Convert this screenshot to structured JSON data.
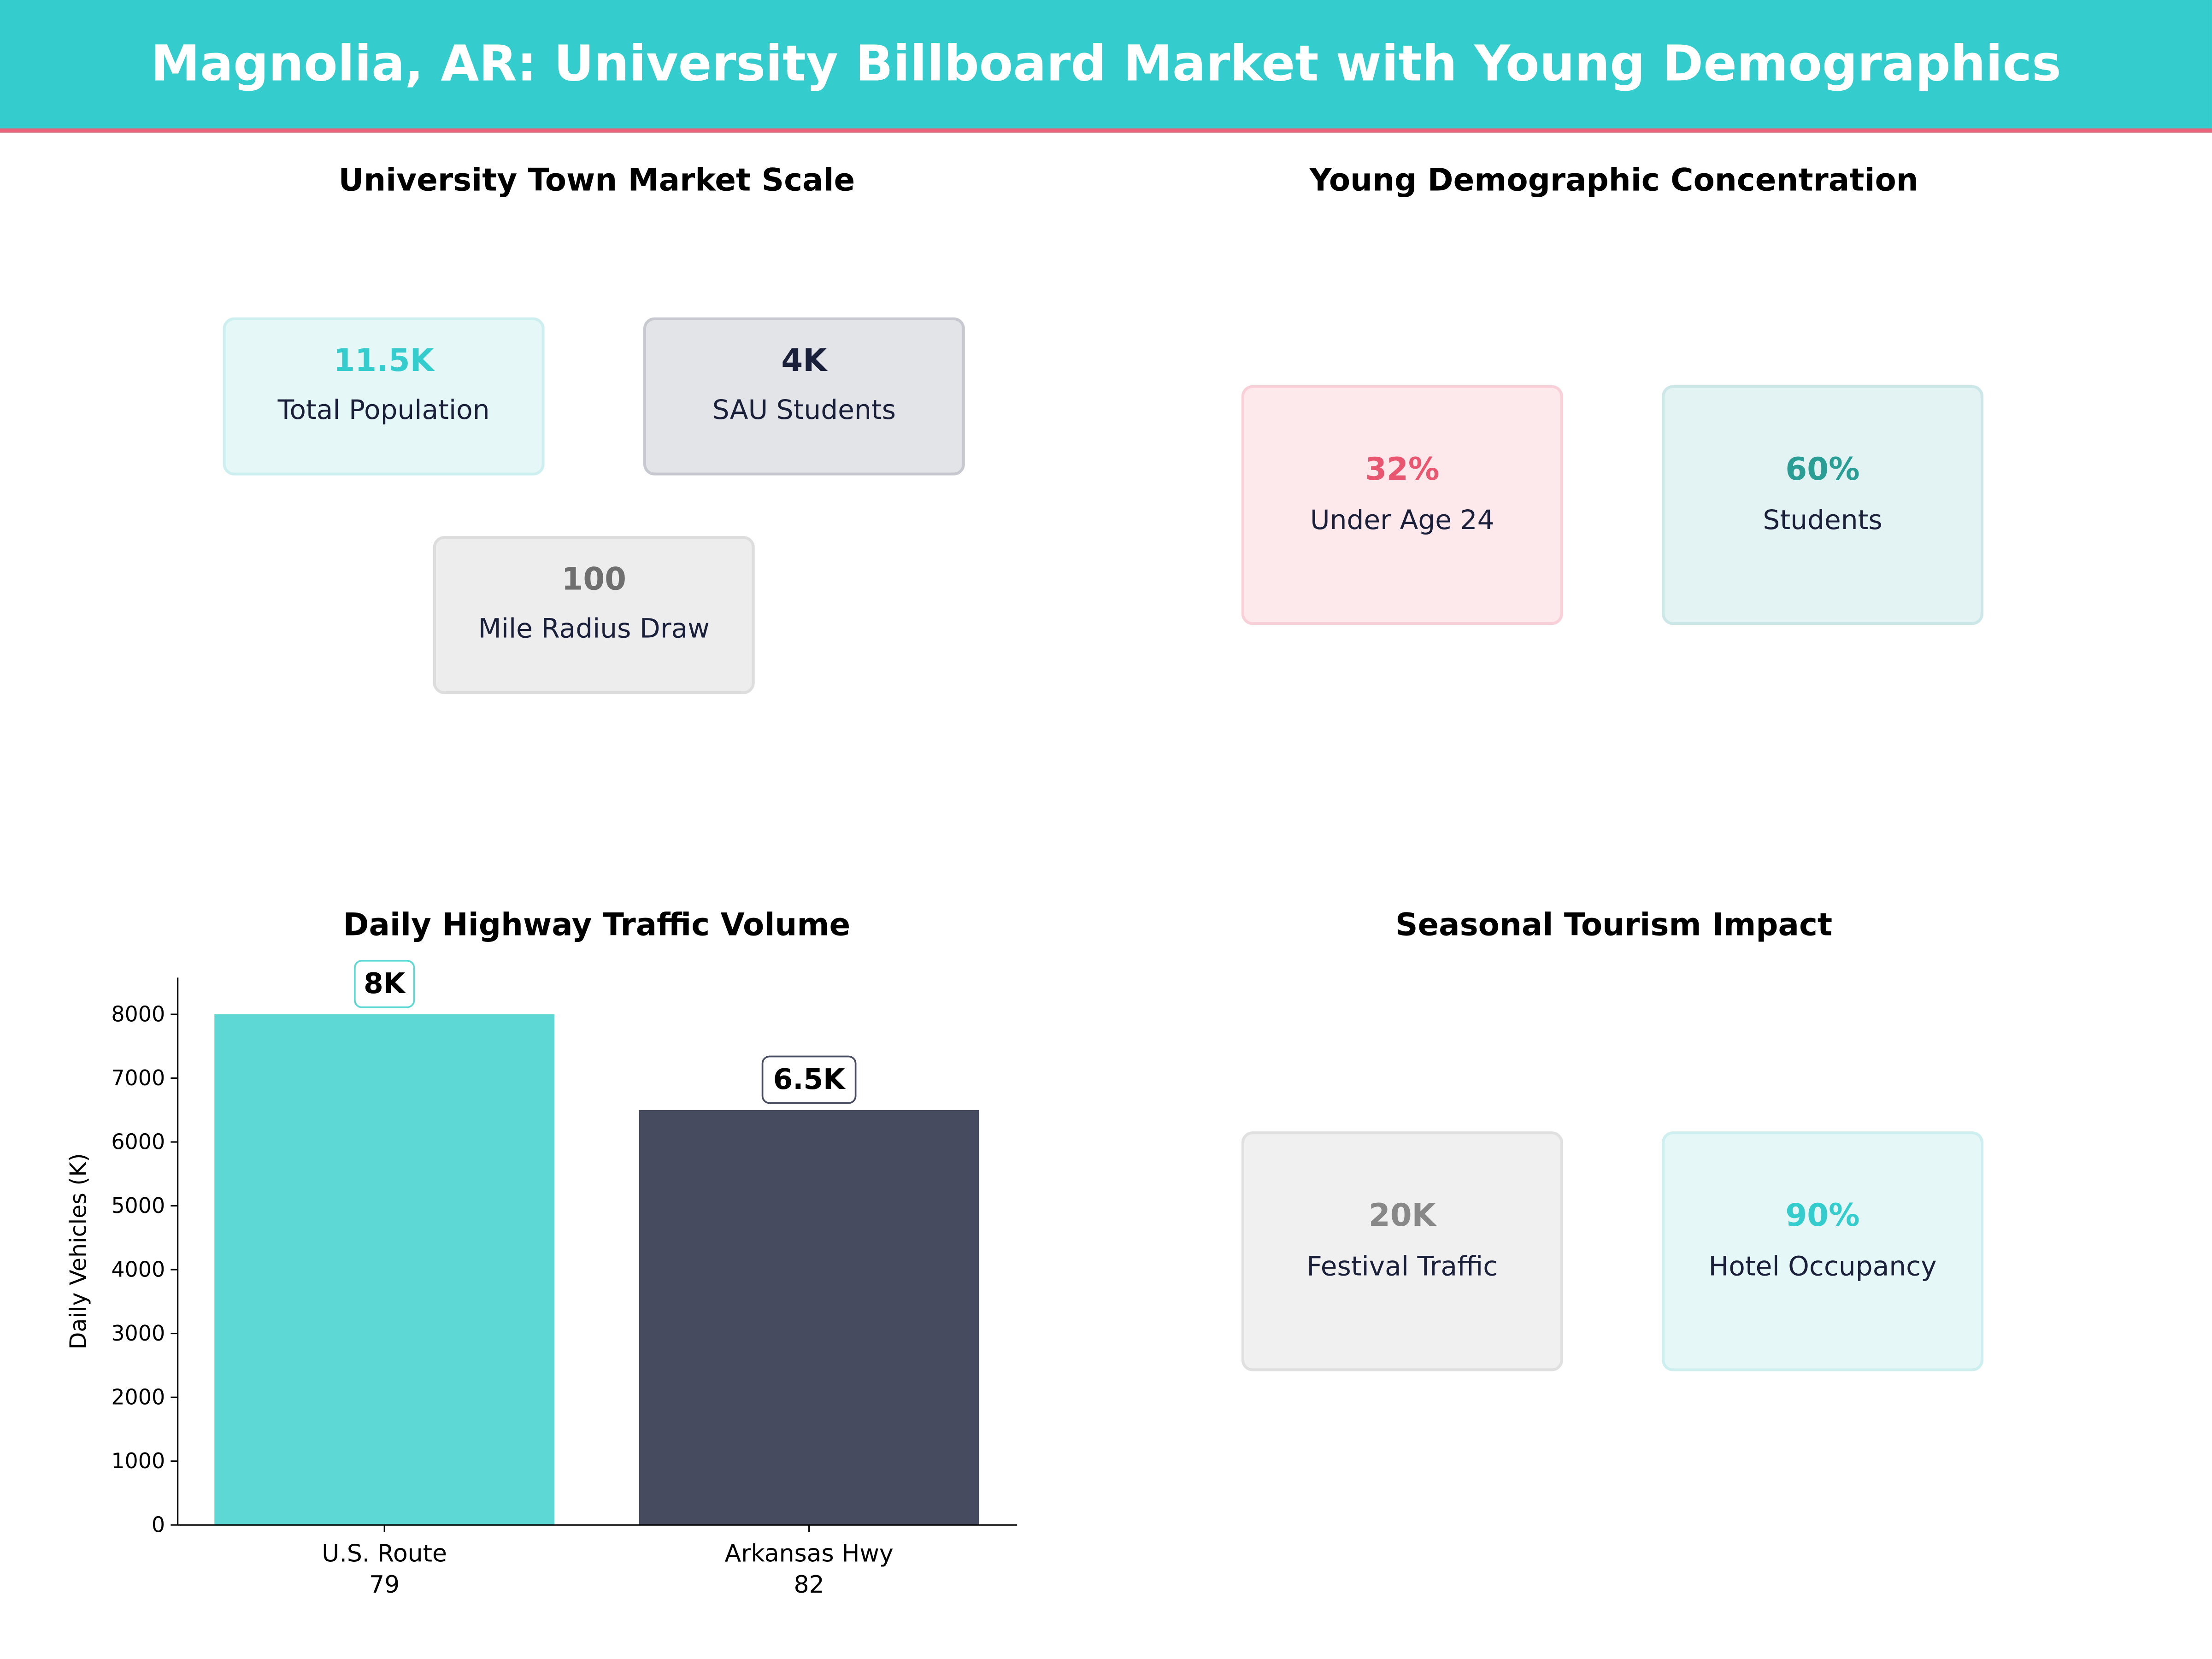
{
  "header": {
    "title": "Magnolia, AR: University Billboard Market with Young Demographics"
  },
  "panels": {
    "market_scale": {
      "title": "University Town Market Scale",
      "cards": [
        {
          "value": "11.5K",
          "label": "Total Population",
          "color": "#34CCCC"
        },
        {
          "value": "4K",
          "label": "SAU Students",
          "color": "#1A1F3A"
        },
        {
          "value": "100",
          "label": "Mile Radius Draw",
          "color": "#6F6F6F"
        }
      ]
    },
    "demographics": {
      "title": "Young Demographic Concentration",
      "cards": [
        {
          "value": "32%",
          "label": "Under Age 24",
          "color": "#E8566F"
        },
        {
          "value": "60%",
          "label": "Students",
          "color": "#2A9D95"
        }
      ]
    },
    "tourism": {
      "title": "Seasonal Tourism Impact",
      "cards": [
        {
          "value": "20K",
          "label": "Festival Traffic",
          "color": "#888888"
        },
        {
          "value": "90%",
          "label": "Hotel Occupancy",
          "color": "#34CCCC"
        }
      ]
    }
  },
  "chart_data": {
    "type": "bar",
    "title": "Daily Highway Traffic Volume",
    "categories": [
      [
        "U.S. Route",
        "79"
      ],
      [
        "Arkansas Hwy",
        "82"
      ]
    ],
    "values": [
      8000,
      6500
    ],
    "data_labels": [
      "8K",
      "6.5K"
    ],
    "colors": [
      "#5DD8D4",
      "#464B60"
    ],
    "ylabel": "Daily Vehicles (K)",
    "ylim": [
      0,
      8575
    ],
    "yticks": [
      0,
      1000,
      2000,
      3000,
      4000,
      5000,
      6000,
      7000,
      8000
    ],
    "grid": false
  }
}
